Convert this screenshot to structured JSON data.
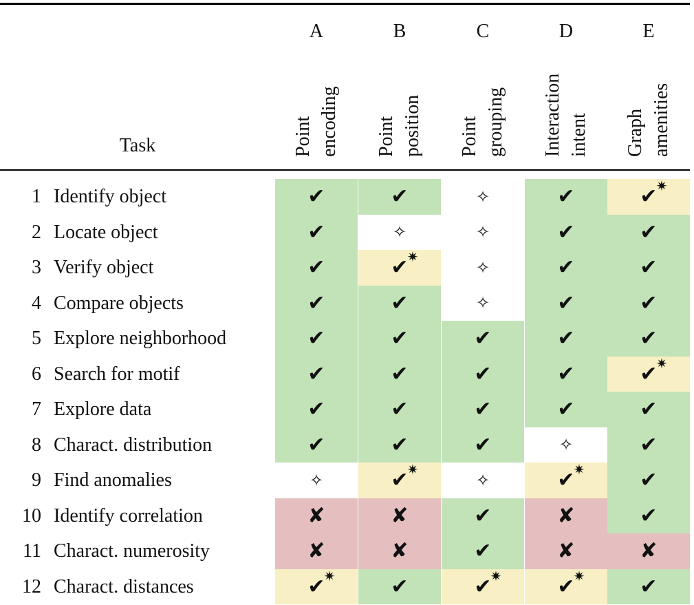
{
  "header": {
    "task_label": "Task",
    "columns": [
      {
        "letter": "A",
        "name_line1": "Point",
        "name_line2": "encoding"
      },
      {
        "letter": "B",
        "name_line1": "Point",
        "name_line2": "position"
      },
      {
        "letter": "C",
        "name_line1": "Point",
        "name_line2": "grouping"
      },
      {
        "letter": "D",
        "name_line1": "Interaction",
        "name_line2": "intent"
      },
      {
        "letter": "E",
        "name_line1": "Graph",
        "name_line2": "amenities"
      }
    ]
  },
  "legend_symbols": {
    "check": "✔",
    "cross": "✘",
    "star": "✷",
    "sparkle": "✧"
  },
  "colors": {
    "yes": "#c2e2b8",
    "partial": "#f8efc4",
    "no": "#e5bfbf",
    "neutral": "#ffffff"
  },
  "rows": [
    {
      "num": "1",
      "task": "Identify object",
      "cells": [
        "yes",
        "yes",
        "neutral",
        "yes",
        "partial"
      ]
    },
    {
      "num": "2",
      "task": "Locate object",
      "cells": [
        "yes",
        "neutral",
        "neutral",
        "yes",
        "yes"
      ]
    },
    {
      "num": "3",
      "task": "Verify object",
      "cells": [
        "yes",
        "partial",
        "neutral",
        "yes",
        "yes"
      ]
    },
    {
      "num": "4",
      "task": "Compare objects",
      "cells": [
        "yes",
        "yes",
        "neutral",
        "yes",
        "yes"
      ]
    },
    {
      "num": "5",
      "task": "Explore neighborhood",
      "cells": [
        "yes",
        "yes",
        "yes",
        "yes",
        "yes"
      ]
    },
    {
      "num": "6",
      "task": "Search for motif",
      "cells": [
        "yes",
        "yes",
        "yes",
        "yes",
        "partial"
      ]
    },
    {
      "num": "7",
      "task": "Explore data",
      "cells": [
        "yes",
        "yes",
        "yes",
        "yes",
        "yes"
      ]
    },
    {
      "num": "8",
      "task": "Charact. distribution",
      "cells": [
        "yes",
        "yes",
        "yes",
        "neutral",
        "yes"
      ]
    },
    {
      "num": "9",
      "task": "Find anomalies",
      "cells": [
        "neutral",
        "partial",
        "neutral",
        "partial",
        "yes"
      ]
    },
    {
      "num": "10",
      "task": "Identify correlation",
      "cells": [
        "no",
        "no",
        "yes",
        "no",
        "yes"
      ]
    },
    {
      "num": "11",
      "task": "Charact. numerosity",
      "cells": [
        "no",
        "no",
        "yes",
        "no",
        "no"
      ]
    },
    {
      "num": "12",
      "task": "Charact. distances",
      "cells": [
        "partial",
        "yes",
        "partial",
        "partial",
        "yes"
      ]
    }
  ]
}
